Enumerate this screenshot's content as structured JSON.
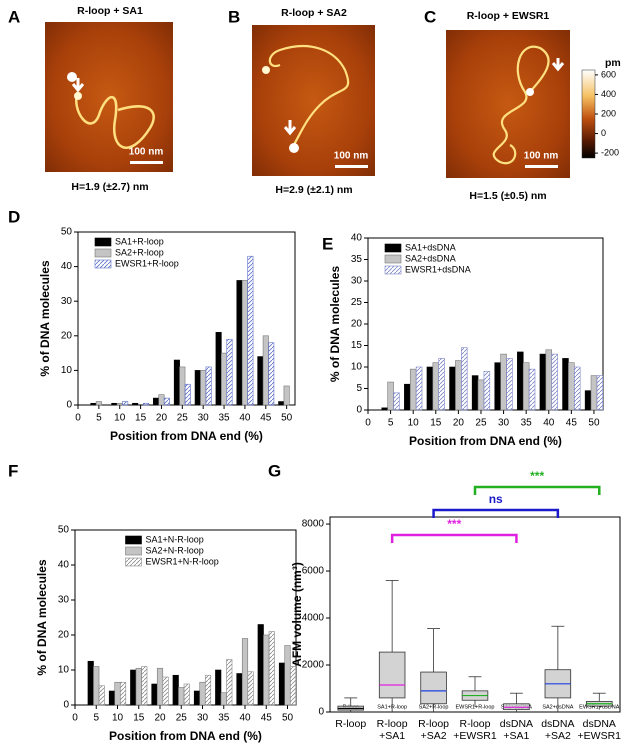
{
  "images": [
    {
      "panel": "A",
      "title": "R-loop + SA1",
      "scale_bar": "100 nm",
      "height": "H=1.9 (±2.7) nm"
    },
    {
      "panel": "B",
      "title": "R-loop + SA2",
      "scale_bar": "100 nm",
      "height": "H=2.9 (±2.1) nm"
    },
    {
      "panel": "C",
      "title": "R-loop + EWSR1",
      "scale_bar": "100 nm",
      "height": "H=1.5 (±0.5) nm"
    }
  ],
  "colorbar": {
    "unit": "pm",
    "lim": [
      -250,
      650
    ],
    "ticks": [
      600,
      400,
      200,
      0,
      -200
    ]
  },
  "chart_data": [
    {
      "type": "bar",
      "panel": "D",
      "xlabel": "Position from DNA end (%)",
      "ylabel": "% of DNA molecules",
      "x": [
        5,
        10,
        15,
        20,
        25,
        30,
        35,
        40,
        45,
        50
      ],
      "xlim": [
        0,
        52
      ],
      "xticks": [
        0,
        5,
        10,
        15,
        20,
        25,
        30,
        35,
        40,
        45,
        50
      ],
      "ylim": [
        0,
        50
      ],
      "yticks": [
        0,
        10,
        20,
        30,
        40,
        50
      ],
      "legend": "upper left",
      "series": [
        {
          "name": "SA1+R-loop",
          "color": "#000000",
          "hatch": false,
          "values": [
            0.5,
            0.5,
            0.5,
            2,
            13,
            10,
            21,
            36,
            14,
            1
          ]
        },
        {
          "name": "SA2+R-loop",
          "color": "#c4c4c4",
          "hatch": false,
          "values": [
            1,
            0.5,
            0,
            3,
            11,
            10,
            15,
            36,
            20,
            5.5
          ]
        },
        {
          "name": "EWSR1+R-loop",
          "color": "#5d6fc8",
          "hatch": true,
          "values": [
            0,
            1,
            0.5,
            2,
            6,
            11,
            19,
            43,
            18,
            0
          ]
        }
      ]
    },
    {
      "type": "bar",
      "panel": "E",
      "xlabel": "Position from DNA end (%)",
      "ylabel": "% of DNA molecules",
      "x": [
        5,
        10,
        15,
        20,
        25,
        30,
        35,
        40,
        45,
        50
      ],
      "xlim": [
        0,
        52
      ],
      "xticks": [
        0,
        5,
        10,
        15,
        20,
        25,
        30,
        35,
        40,
        45,
        50
      ],
      "ylim": [
        0,
        40
      ],
      "yticks": [
        0,
        5,
        10,
        15,
        20,
        25,
        30,
        35,
        40
      ],
      "legend": "upper left",
      "series": [
        {
          "name": "SA1+dsDNA",
          "color": "#000000",
          "hatch": false,
          "values": [
            0.5,
            6,
            10,
            10,
            8,
            11,
            13.5,
            13,
            12,
            4.5
          ]
        },
        {
          "name": "SA2+dsDNA",
          "color": "#c4c4c4",
          "hatch": false,
          "values": [
            6.5,
            9.5,
            11,
            11.5,
            7,
            13,
            11,
            14,
            11,
            8
          ]
        },
        {
          "name": "EWSR1+dsDNA",
          "color": "#7d86c8",
          "hatch": true,
          "values": [
            4,
            10,
            12,
            14.5,
            9,
            12,
            9.5,
            13,
            10,
            8
          ]
        }
      ]
    },
    {
      "type": "bar",
      "panel": "F",
      "xlabel": "Position from DNA end (%)",
      "ylabel": "% of DNA molecules",
      "x": [
        5,
        10,
        15,
        20,
        25,
        30,
        35,
        40,
        45,
        50
      ],
      "xlim": [
        0,
        52
      ],
      "xticks": [
        0,
        5,
        10,
        15,
        20,
        25,
        30,
        35,
        40,
        45,
        50
      ],
      "ylim": [
        0,
        50
      ],
      "yticks": [
        0,
        10,
        20,
        30,
        40,
        50
      ],
      "legend": "upper center",
      "series": [
        {
          "name": "SA1+N-R-loop",
          "color": "#000000",
          "hatch": false,
          "values": [
            12.5,
            4,
            10,
            6,
            8.5,
            4,
            10,
            9,
            23,
            12
          ]
        },
        {
          "name": "SA2+N-R-loop",
          "color": "#c4c4c4",
          "hatch": false,
          "values": [
            11,
            6.5,
            10.5,
            10.5,
            5,
            6.5,
            3.5,
            19,
            20,
            17
          ]
        },
        {
          "name": "EWSR1+N-R-loop",
          "color": "#8a8a8a",
          "hatch": true,
          "values": [
            5.5,
            6.5,
            11,
            8,
            6,
            8.5,
            13,
            9.5,
            21,
            11
          ]
        }
      ]
    },
    {
      "type": "box",
      "panel": "G",
      "ylabel": "AFM volume (nm³)",
      "categories": [
        "R-loop",
        "R-loop\n+SA1",
        "R-loop\n+SA2",
        "R-loop\n+EWSR1",
        "dsDNA\n+SA1",
        "dsDNA\n+SA2",
        "dsDNA\n+EWSR1"
      ],
      "sublabels": [
        "R-loop",
        "SA1+R-loop",
        "SA2+R-loop",
        "EWSR1+R-loop",
        "SA1+dsDNA",
        "SA2+dsDNA",
        "EWSR1+dsDNA"
      ],
      "colors": [
        "#000000",
        "#e020e0",
        "#2040e0",
        "#20b020",
        "#e020e0",
        "#2040e0",
        "#20b020"
      ],
      "ylim": [
        0,
        8300
      ],
      "yticks": [
        0,
        2000,
        4000,
        6000,
        8000
      ],
      "whisker_low": [
        0,
        0,
        0,
        200,
        0,
        0,
        100
      ],
      "q1": [
        80,
        600,
        350,
        500,
        100,
        600,
        250
      ],
      "median": [
        150,
        1150,
        900,
        700,
        200,
        1200,
        350
      ],
      "q3": [
        250,
        2550,
        1700,
        900,
        350,
        1800,
        450
      ],
      "whisker_high": [
        600,
        5600,
        3550,
        1500,
        800,
        3650,
        800
      ],
      "annotations": [
        {
          "text": "***",
          "color": "#e020e0"
        },
        {
          "text": "ns",
          "color": "#1a1acc"
        },
        {
          "text": "***",
          "color": "#22b022"
        }
      ]
    }
  ]
}
